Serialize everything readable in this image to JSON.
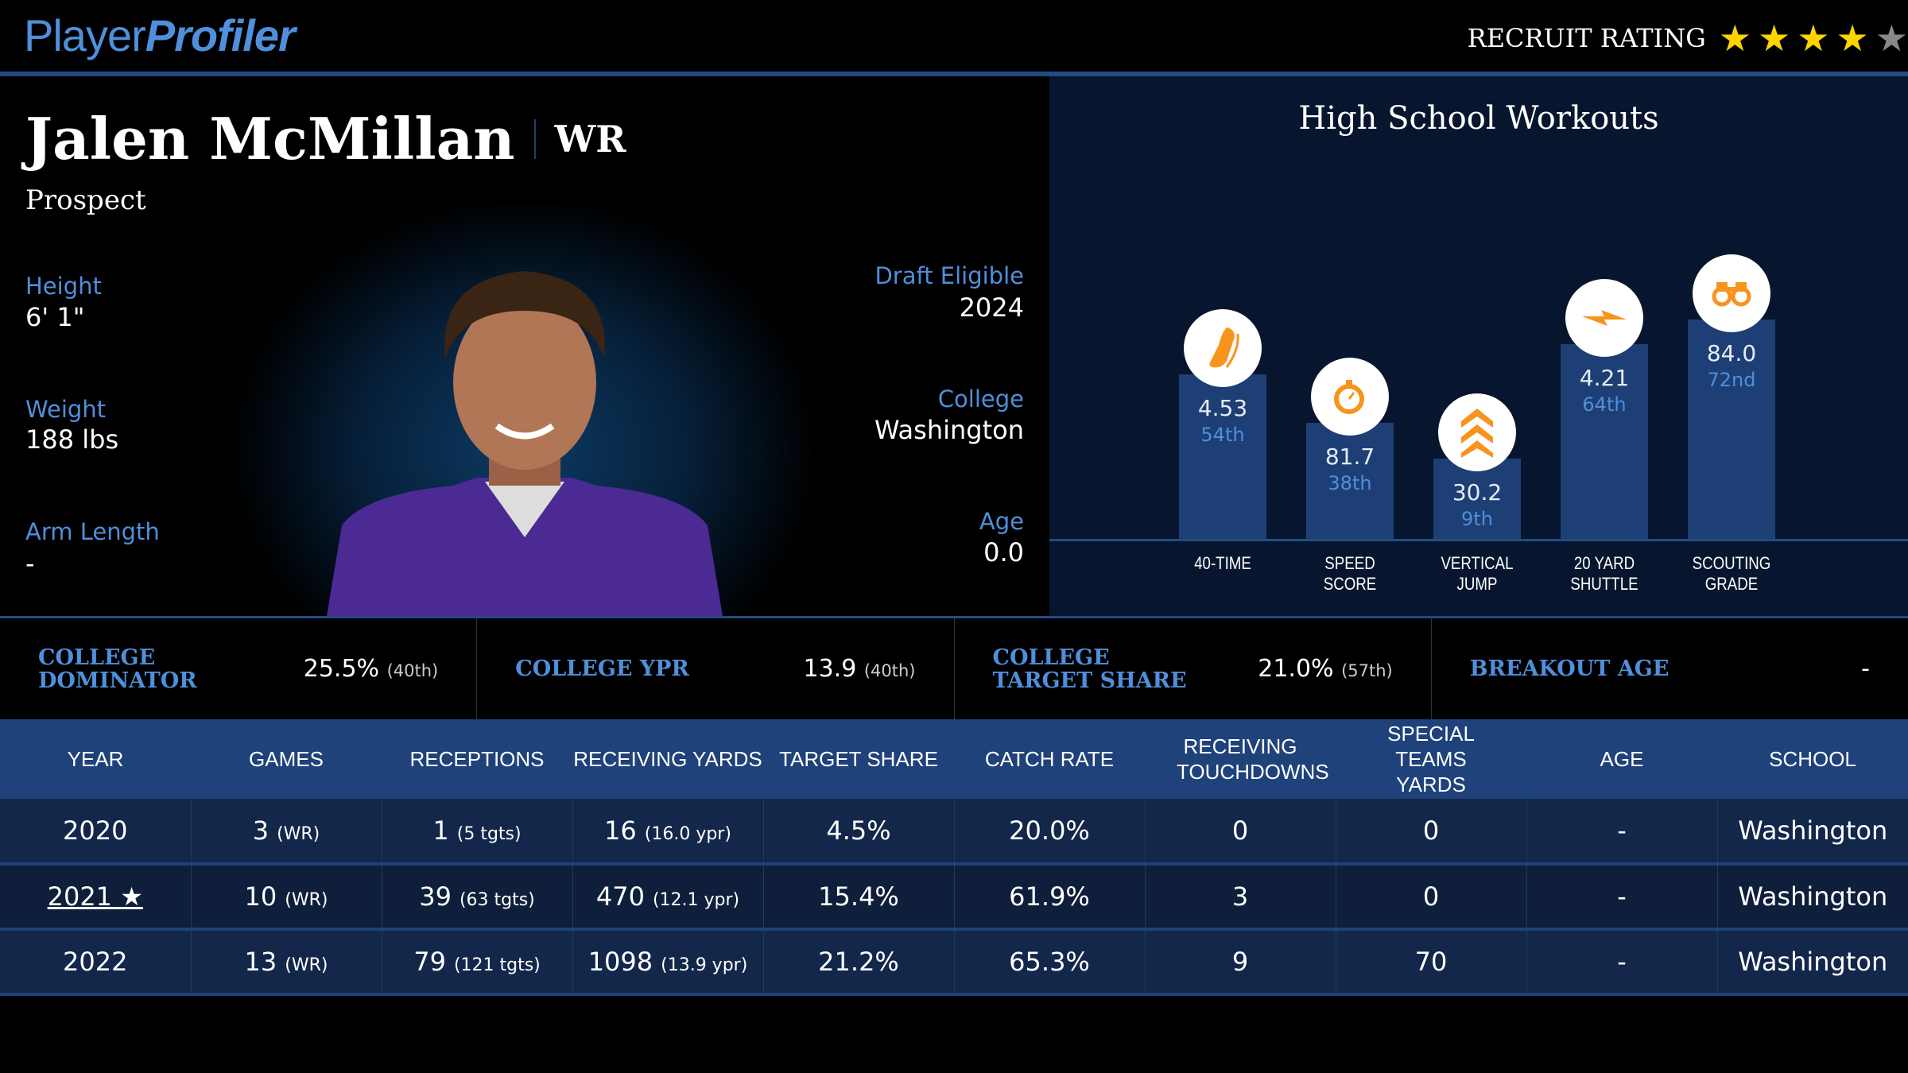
{
  "brand": {
    "part1": "Player",
    "part2": "Profiler"
  },
  "recruit": {
    "label": "RECRUIT RATING",
    "stars": 4,
    "max_stars": 5
  },
  "player": {
    "name": "Jalen McMillan",
    "position": "WR",
    "status": "Prospect"
  },
  "bio_left": [
    {
      "label": "Height",
      "value": "6' 1\""
    },
    {
      "label": "Weight",
      "value": "188 lbs"
    },
    {
      "label": "Arm Length",
      "value": "-"
    }
  ],
  "bio_right": [
    {
      "label": "Draft Eligible",
      "value": "2024"
    },
    {
      "label": "College",
      "value": "Washington"
    },
    {
      "label": "Age",
      "value": "0.0"
    }
  ],
  "workouts": {
    "title": "High School Workouts",
    "items": [
      {
        "label1": "40-TIME",
        "label2": "",
        "value": "4.53",
        "pct_label": "54th",
        "percentile": 54,
        "icon": "shoe-icon"
      },
      {
        "label1": "SPEED",
        "label2": "SCORE",
        "value": "81.7",
        "pct_label": "38th",
        "percentile": 38,
        "icon": "stopwatch-icon"
      },
      {
        "label1": "VERTICAL",
        "label2": "JUMP",
        "value": "30.2",
        "pct_label": "9th",
        "percentile": 9,
        "icon": "chevrons-up-icon"
      },
      {
        "label1": "20 YARD",
        "label2": "SHUTTLE",
        "value": "4.21",
        "pct_label": "64th",
        "percentile": 64,
        "icon": "lightning-icon"
      },
      {
        "label1": "SCOUTING",
        "label2": "GRADE",
        "value": "84.0",
        "pct_label": "72nd",
        "percentile": 72,
        "icon": "binoculars-icon"
      }
    ]
  },
  "stats": [
    {
      "label": "COLLEGE DOMINATOR",
      "value": "25.5%",
      "rank": "(40th)"
    },
    {
      "label": "COLLEGE YPR",
      "value": "13.9",
      "rank": "(40th)"
    },
    {
      "label": "COLLEGE TARGET SHARE",
      "value": "21.0%",
      "rank": "(57th)"
    },
    {
      "label": "BREAKOUT AGE",
      "value": "-",
      "rank": ""
    }
  ],
  "table": {
    "headers": [
      "YEAR",
      "GAMES",
      "RECEPTIONS",
      "RECEIVING YARDS",
      "TARGET SHARE",
      "CATCH RATE",
      "RECEIVING TOUCHDOWNS",
      "SPECIAL TEAMS YARDS",
      "AGE",
      "SCHOOL"
    ],
    "rows": [
      {
        "year": "2020",
        "games": "3",
        "games_note": "(WR)",
        "rec": "1",
        "rec_note": "(5 tgts)",
        "yds": "16",
        "yds_note": "(16.0 ypr)",
        "ts": "4.5%",
        "cr": "20.0%",
        "td": "0",
        "st": "0",
        "age": "-",
        "school": "Washington"
      },
      {
        "year": "2021 ★",
        "games": "10",
        "games_note": "(WR)",
        "rec": "39",
        "rec_note": "(63 tgts)",
        "yds": "470",
        "yds_note": "(12.1 ypr)",
        "ts": "15.4%",
        "cr": "61.9%",
        "td": "3",
        "st": "0",
        "age": "-",
        "school": "Washington"
      },
      {
        "year": "2022",
        "games": "13",
        "games_note": "(WR)",
        "rec": "79",
        "rec_note": "(121 tgts)",
        "yds": "1098",
        "yds_note": "(13.9 ypr)",
        "ts": "21.2%",
        "cr": "65.3%",
        "td": "9",
        "st": "70",
        "age": "-",
        "school": "Washington"
      }
    ]
  }
}
